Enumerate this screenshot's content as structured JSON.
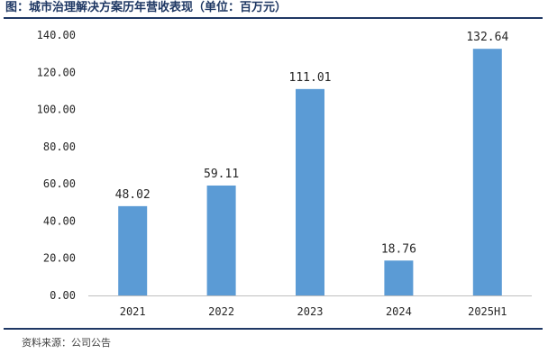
{
  "header": {
    "title": "图：城市治理解决方案历年营收表现（单位：百万元）"
  },
  "footer": {
    "source": "资料来源：公司公告"
  },
  "colors": {
    "bar": "#5b9bd5",
    "rule": "#1f3864",
    "axis": "#bfbfbf"
  },
  "chart_data": {
    "type": "bar",
    "title": "",
    "xlabel": "",
    "ylabel": "",
    "categories": [
      "2021",
      "2022",
      "2023",
      "2024",
      "2025H1"
    ],
    "values": [
      48.02,
      59.11,
      111.01,
      18.76,
      132.64
    ],
    "value_labels": [
      "48.02",
      "59.11",
      "111.01",
      "18.76",
      "132.64"
    ],
    "y_ticks": [
      0,
      20,
      40,
      60,
      80,
      100,
      120,
      140
    ],
    "y_tick_labels": [
      "0.00",
      "20.00",
      "40.00",
      "60.00",
      "80.00",
      "100.00",
      "120.00",
      "140.00"
    ],
    "ylim": [
      0,
      140
    ],
    "grid": false,
    "legend": "none"
  }
}
